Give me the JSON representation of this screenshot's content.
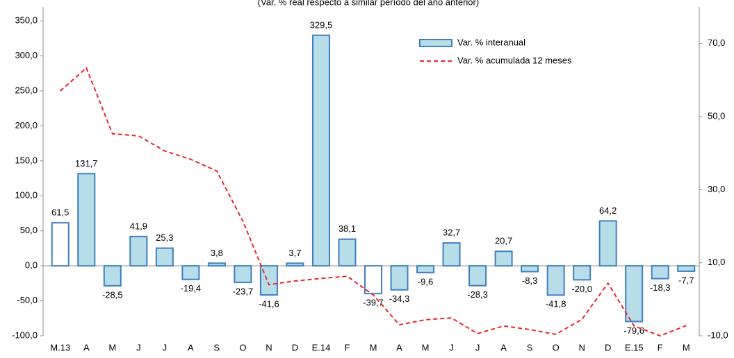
{
  "chart_data": {
    "type": "bar_line",
    "subtitle": "(Var. % real respecto a similar período del año anterior)",
    "categories": [
      "M.13",
      "A",
      "M",
      "J",
      "J",
      "A",
      "S",
      "O",
      "N",
      "D",
      "E.14",
      "F",
      "M",
      "A",
      "M",
      "J",
      "J",
      "A",
      "S",
      "O",
      "N",
      "D",
      "E.15",
      "F",
      "M"
    ],
    "series": [
      {
        "name": "Var. % interanual",
        "type": "bar",
        "color": "#b7dde8",
        "edge_color": "#3f7fbf",
        "point_colors": [
          "#ffffff",
          "#b7dde8",
          "#b7dde8",
          "#b7dde8",
          "#b7dde8",
          "#b7dde8",
          "#b7dde8",
          "#b7dde8",
          "#b7dde8",
          "#b7dde8",
          "#b7dde8",
          "#b7dde8",
          "#ffffff",
          "#b7dde8",
          "#b7dde8",
          "#b7dde8",
          "#b7dde8",
          "#b7dde8",
          "#b7dde8",
          "#b7dde8",
          "#b7dde8",
          "#b7dde8",
          "#b7dde8",
          "#b7dde8",
          "#b7dde8"
        ],
        "values": [
          61.5,
          131.7,
          -28.5,
          41.9,
          25.3,
          -19.4,
          3.8,
          -23.7,
          -41.6,
          3.7,
          329.5,
          38.1,
          -39.7,
          -34.3,
          -9.6,
          32.7,
          -28.3,
          20.7,
          -8.3,
          -41.8,
          -20.0,
          64.2,
          -79.6,
          -18.3,
          -7.7
        ],
        "value_labels": [
          "61,5",
          "131,7",
          "-28,5",
          "41,9",
          "25,3",
          "-19,4",
          "3,8",
          "-23,7",
          "-41,6",
          "3,7",
          "329,5",
          "38,1",
          "-39,7",
          "-34,3",
          "-9,6",
          "32,7",
          "-28,3",
          "20,7",
          "-8,3",
          "-41,8",
          "-20,0",
          "64,2",
          "-79,6",
          "-18,3",
          "-7,7"
        ]
      },
      {
        "name": "Var. % acumulada 12 meses",
        "type": "line",
        "axis": "y2",
        "color": "#e8262a",
        "dashed": true,
        "values": [
          57.0,
          63.3,
          45.3,
          44.7,
          40.6,
          38.3,
          35.1,
          21.4,
          4.0,
          5.0,
          5.7,
          6.3,
          1.2,
          -7.0,
          -5.6,
          -5.1,
          -9.4,
          -7.3,
          -8.3,
          -9.6,
          -5.5,
          4.4,
          -7.3,
          -10.0,
          -7.2
        ]
      }
    ],
    "ylim": [
      -100,
      370
    ],
    "yticks": [
      {
        "value": -100,
        "label": "-100,0"
      },
      {
        "value": -50,
        "label": "-50,0"
      },
      {
        "value": 0,
        "label": "0,0"
      },
      {
        "value": 50,
        "label": "50,0"
      },
      {
        "value": 100,
        "label": "100,0"
      },
      {
        "value": 150,
        "label": "150,0"
      },
      {
        "value": 200,
        "label": "200,0"
      },
      {
        "value": 250,
        "label": "250,0"
      },
      {
        "value": 300,
        "label": "300,0"
      },
      {
        "value": 350,
        "label": "350,0"
      }
    ],
    "y2lim": [
      -10,
      80
    ],
    "y2ticks": [
      {
        "value": -10,
        "label": "-10,0"
      },
      {
        "value": 10,
        "label": "10,0"
      },
      {
        "value": 30,
        "label": "30,0"
      },
      {
        "value": 50,
        "label": "50,0"
      },
      {
        "value": 70,
        "label": "70,0"
      }
    ],
    "grid": false,
    "legend": "top-right"
  }
}
